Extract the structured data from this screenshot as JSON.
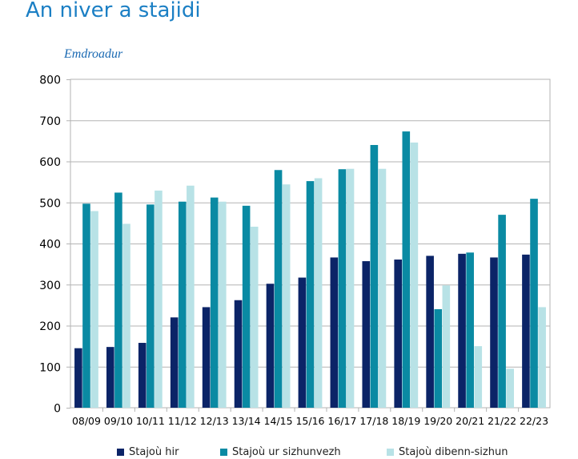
{
  "page": {
    "title": "An niver a stajidi",
    "unit_label": "Emdroadur"
  },
  "chart_data": {
    "type": "bar",
    "title": "",
    "xlabel": "",
    "ylabel": "",
    "ylim": [
      0,
      800
    ],
    "yticks": [
      0,
      100,
      200,
      300,
      400,
      500,
      600,
      700,
      800
    ],
    "grid": true,
    "legend_position": "bottom",
    "categories": [
      "08/09",
      "09/10",
      "10/11",
      "11/12",
      "12/13",
      "13/14",
      "14/15",
      "15/16",
      "16/17",
      "17/18",
      "18/19",
      "19/20",
      "20/21",
      "21/22",
      "22/23"
    ],
    "series": [
      {
        "name": "Stajoù hir",
        "color": "#0b2467",
        "values": [
          145,
          148,
          158,
          220,
          245,
          262,
          302,
          317,
          366,
          357,
          361,
          370,
          375,
          366,
          373
        ]
      },
      {
        "name": "Stajoù ur sizhunvezh",
        "color": "#0a8aa3",
        "values": [
          497,
          524,
          495,
          502,
          512,
          492,
          579,
          552,
          581,
          640,
          673,
          240,
          378,
          470,
          509
        ]
      },
      {
        "name": "Stajoù dibenn-sizhun",
        "color": "#b8e2e6",
        "values": [
          479,
          448,
          529,
          541,
          502,
          441,
          544,
          559,
          582,
          582,
          646,
          298,
          150,
          95,
          245
        ]
      }
    ]
  }
}
